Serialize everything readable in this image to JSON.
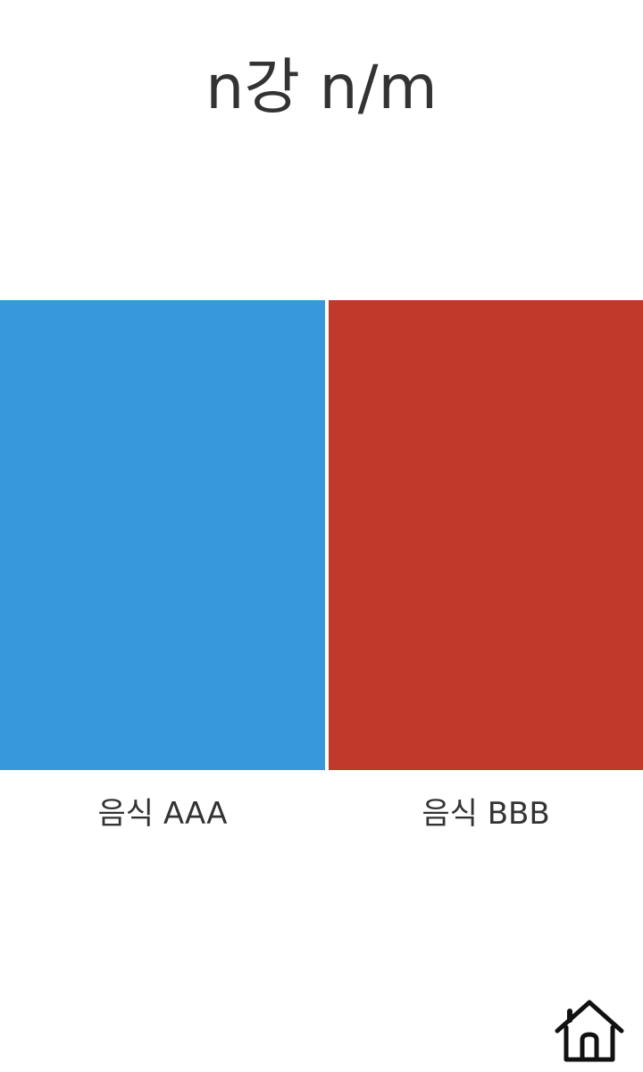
{
  "header": {
    "title": "n강 n/m"
  },
  "choices": [
    {
      "label": "음식 AAA",
      "color": "#3799db"
    },
    {
      "label": "음식 BBB",
      "color": "#c0392b"
    }
  ],
  "nav": {
    "home_icon": "home-icon"
  }
}
